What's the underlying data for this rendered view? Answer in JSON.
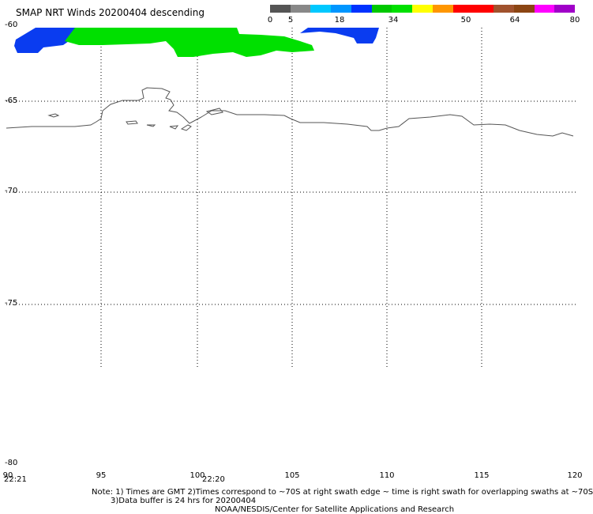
{
  "title": "SMAP NRT Winds  20200404 descending",
  "colorbar": {
    "colors": [
      "#555555",
      "#888888",
      "#00c8ff",
      "#0096ff",
      "#0032ff",
      "#00c800",
      "#00e000",
      "#ffff00",
      "#ff9600",
      "#ff0000",
      "#ff0000",
      "#a0522d",
      "#8b4513",
      "#ff00ff",
      "#a000c8"
    ],
    "ticks": [
      "0",
      "5",
      "18",
      "34",
      "50",
      "64",
      "80"
    ]
  },
  "axes": {
    "y_labels": [
      "-60",
      "-65",
      "-70",
      "-75",
      "-80"
    ],
    "x_labels": [
      "90",
      "95",
      "100",
      "105",
      "110",
      "115",
      "120"
    ]
  },
  "times": [
    "22:21",
    "22:20"
  ],
  "notes": {
    "line1": "Note: 1) Times are GMT 2)Times correspond to ~70S at right swath edge ~ time is right swath for overlapping swaths at ~70S",
    "line2": "3)Data buffer is 24 hrs for 20200404",
    "credit": "NOAA/NESDIS/Center for Satellite Applications and Research"
  }
}
